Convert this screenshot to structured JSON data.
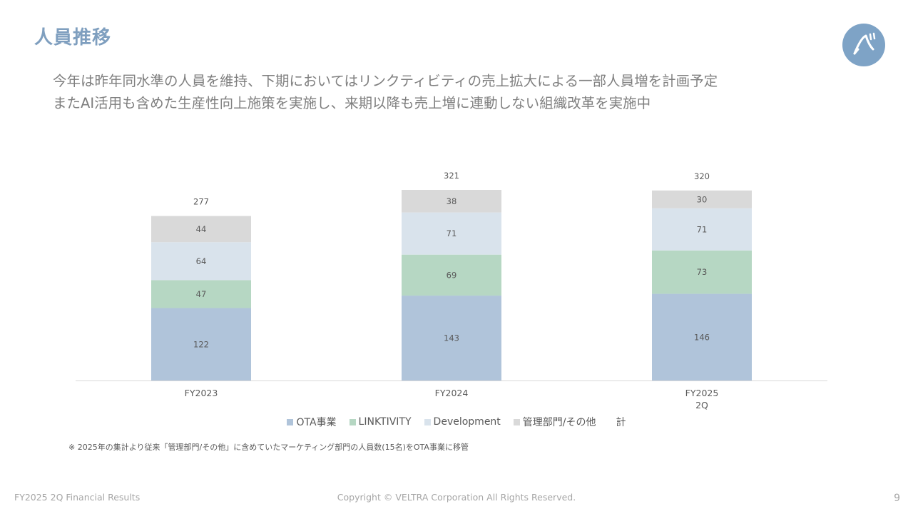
{
  "header": {
    "title": "人員推移",
    "logo_icon": "veltra-logo-icon"
  },
  "lead": {
    "line1": "今年は昨年同水準の人員を維持、下期においてはリンクティビティの売上拡大による一部人員増を計画予定",
    "line2": "またAI活用も含めた生産性向上施策を実施し、来期以降も売上増に連動しない組織改革を実施中"
  },
  "chart_data": {
    "type": "bar",
    "stacked": true,
    "categories": [
      "FY2023",
      "FY2024",
      "FY2025\n2Q"
    ],
    "series": [
      {
        "name": "OTA事業",
        "values": [
          122,
          143,
          146
        ],
        "color": "#b0c4da"
      },
      {
        "name": "LINKTIVITY",
        "values": [
          47,
          69,
          73
        ],
        "color": "#b6d7c3"
      },
      {
        "name": "Development",
        "values": [
          64,
          71,
          71
        ],
        "color": "#d9e3ec"
      },
      {
        "name": "管理部門/その他",
        "values": [
          44,
          38,
          30
        ],
        "color": "#d9d9d9"
      }
    ],
    "totals": {
      "name": "計",
      "values": [
        277,
        321,
        320
      ]
    },
    "title": "",
    "xlabel": "",
    "ylabel": "",
    "ylim": [
      0,
      340
    ],
    "legend_position": "bottom",
    "grid": false
  },
  "footnote": "※ 2025年の集計より従来「管理部門/その他」に含めていたマーケティング部門の人員数(15名)をOTA事業に移管",
  "footer": {
    "left": "FY2025 2Q Financial Results",
    "center": "Copyright © VELTRA Corporation All Rights Reserved.",
    "page_number": "9"
  }
}
